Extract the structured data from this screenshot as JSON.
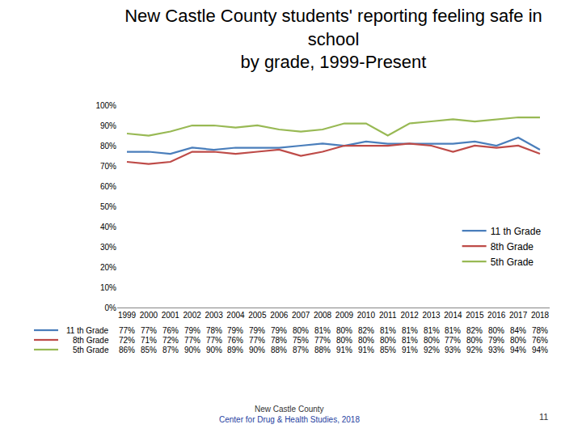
{
  "chart_data": {
    "type": "line",
    "title": "New Castle County students' reporting feeling safe in\nschool\nby grade, 1999-Present",
    "categories": [
      "1999",
      "2000",
      "2001",
      "2002",
      "2003",
      "2004",
      "2005",
      "2006",
      "2007",
      "2008",
      "2009",
      "2010",
      "2011",
      "2012",
      "2013",
      "2014",
      "2015",
      "2016",
      "2017",
      "2018"
    ],
    "series": [
      {
        "name": "11 th Grade",
        "color": "#4a7ebb",
        "values": [
          77,
          77,
          76,
          79,
          78,
          79,
          79,
          79,
          80,
          81,
          80,
          82,
          81,
          81,
          81,
          81,
          82,
          80,
          84,
          78
        ],
        "value_labels": [
          "77%",
          "77%",
          "76%",
          "79%",
          "78%",
          "79%",
          "79%",
          "79%",
          "80%",
          "81%",
          "80%",
          "82%",
          "81%",
          "81%",
          "81%",
          "81%",
          "82%",
          "80%",
          "84%",
          "78%"
        ]
      },
      {
        "name": "8th Grade",
        "color": "#be4b48",
        "values": [
          72,
          71,
          72,
          77,
          77,
          76,
          77,
          78,
          75,
          77,
          80,
          80,
          80,
          81,
          80,
          77,
          80,
          79,
          80,
          76
        ],
        "value_labels": [
          "72%",
          "71%",
          "72%",
          "77%",
          "77%",
          "76%",
          "77%",
          "78%",
          "75%",
          "77%",
          "80%",
          "80%",
          "80%",
          "81%",
          "80%",
          "77%",
          "80%",
          "79%",
          "80%",
          "76%"
        ]
      },
      {
        "name": "5th Grade",
        "color": "#98b954",
        "values": [
          86,
          85,
          87,
          90,
          90,
          89,
          90,
          88,
          87,
          88,
          91,
          91,
          85,
          91,
          92,
          93,
          92,
          93,
          94,
          94
        ],
        "value_labels": [
          "86%",
          "85%",
          "87%",
          "90%",
          "90%",
          "89%",
          "90%",
          "88%",
          "87%",
          "88%",
          "91%",
          "91%",
          "85%",
          "91%",
          "92%",
          "93%",
          "92%",
          "93%",
          "94%",
          "94%"
        ]
      }
    ],
    "ylim": [
      0,
      100
    ],
    "yticks": [
      {
        "value": 0,
        "label": "0%"
      },
      {
        "value": 10,
        "label": "10%"
      },
      {
        "value": 20,
        "label": "20%"
      },
      {
        "value": 30,
        "label": "30%"
      },
      {
        "value": 40,
        "label": "40%"
      },
      {
        "value": 50,
        "label": "50%"
      },
      {
        "value": 60,
        "label": "60%"
      },
      {
        "value": 70,
        "label": "70%"
      },
      {
        "value": 80,
        "label": "80%"
      },
      {
        "value": 90,
        "label": "90%"
      },
      {
        "value": 100,
        "label": "100%"
      }
    ],
    "grid": false,
    "legend": "lower right",
    "annotations": [
      "New Castle County",
      "Center for Drug & Health Studies, 2018",
      "11"
    ]
  }
}
